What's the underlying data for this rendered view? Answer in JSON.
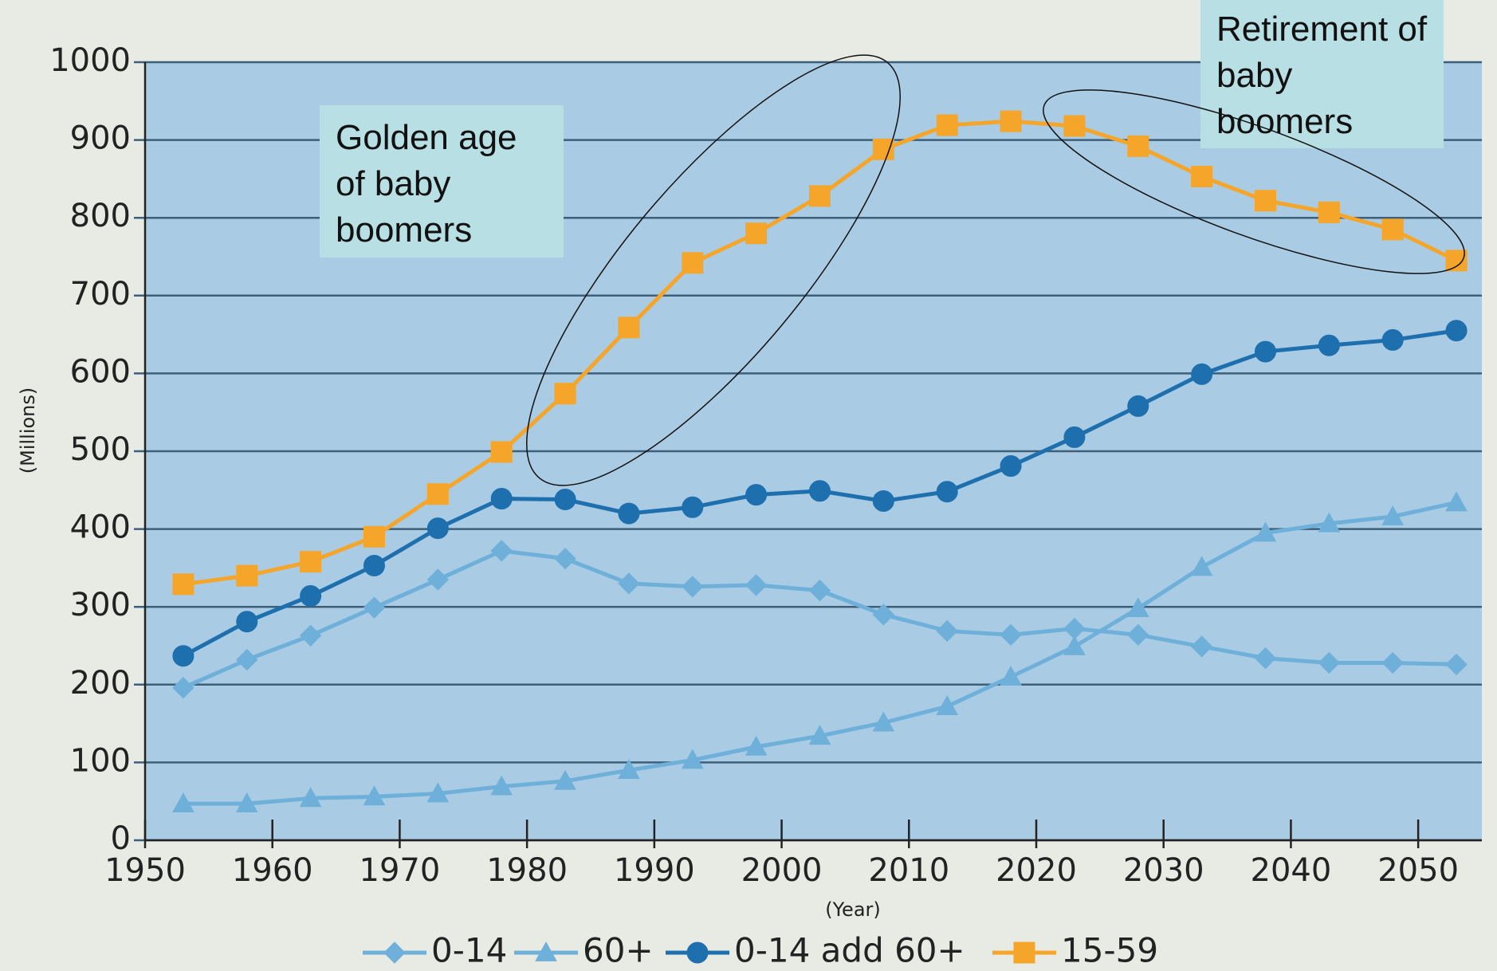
{
  "chart_data": {
    "type": "line",
    "x": [
      1953,
      1958,
      1963,
      1968,
      1973,
      1978,
      1983,
      1988,
      1993,
      1998,
      2003,
      2008,
      2013,
      2018,
      2023,
      2028,
      2033,
      2038,
      2043,
      2048,
      2053
    ],
    "xlim": [
      1950,
      2055
    ],
    "xticks": [
      1950,
      1960,
      1970,
      1980,
      1990,
      2000,
      2010,
      2020,
      2030,
      2040,
      2050
    ],
    "ylim": [
      0,
      1000
    ],
    "yticks": [
      0,
      100,
      200,
      300,
      400,
      500,
      600,
      700,
      800,
      900,
      1000
    ],
    "grid": true,
    "xlabel": "(Year)",
    "ylabel": "(Millions)",
    "legend": "bottom",
    "series": [
      {
        "name": "0-14",
        "color": "#6eb0d9",
        "marker": "diamond",
        "values": [
          196,
          232,
          263,
          299,
          335,
          372,
          362,
          330,
          326,
          328,
          321,
          290,
          269,
          264,
          272,
          264,
          249,
          234,
          228,
          228,
          226
        ]
      },
      {
        "name": "60+",
        "color": "#6eb0d9",
        "marker": "triangle",
        "values": [
          47,
          47,
          54,
          56,
          60,
          69,
          76,
          90,
          103,
          120,
          134,
          151,
          172,
          210,
          249,
          298,
          351,
          395,
          407,
          416,
          434
        ]
      },
      {
        "name": "0-14 add 60+",
        "color": "#1e6fae",
        "marker": "circle",
        "values": [
          237,
          281,
          314,
          353,
          401,
          439,
          438,
          420,
          428,
          444,
          449,
          436,
          448,
          481,
          518,
          558,
          599,
          628,
          636,
          643,
          655
        ]
      },
      {
        "name": "15-59",
        "color": "#f5a62a",
        "marker": "square",
        "values": [
          329,
          340,
          358,
          390,
          445,
          499,
          574,
          659,
          742,
          780,
          828,
          888,
          919,
          924,
          918,
          892,
          853,
          822,
          807,
          785,
          745
        ]
      }
    ],
    "annotations": [
      "Golden age of baby boomers",
      "Retirement of baby boomers"
    ]
  }
}
